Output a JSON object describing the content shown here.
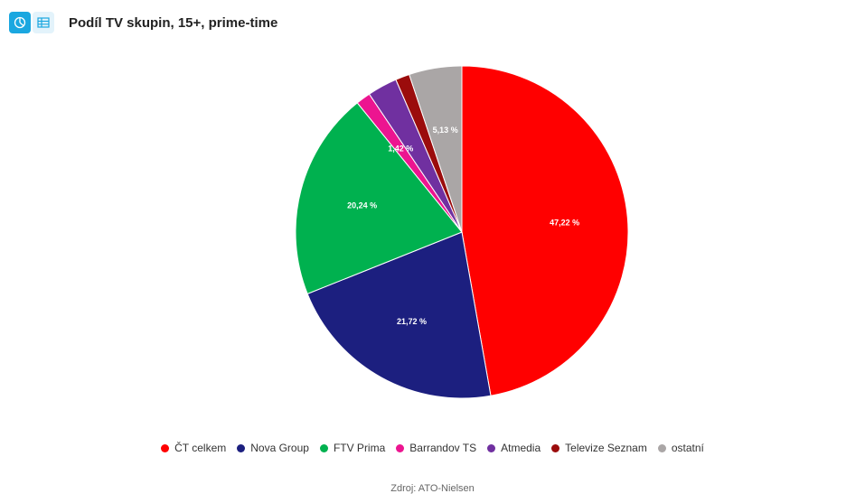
{
  "chart_data": {
    "type": "pie",
    "title": "Podíl TV skupin, 15+, prime-time",
    "categories": [
      "ČT celkem",
      "Nova Group",
      "FTV Prima",
      "Barrandov TS",
      "Atmedia",
      "Televize Seznam",
      "ostatní"
    ],
    "values": [
      47.22,
      21.72,
      20.24,
      1.42,
      2.9,
      1.37,
      5.13
    ],
    "value_labels": [
      "47,22 %",
      "21,72 %",
      "20,24 %",
      "1,42 %",
      null,
      null,
      "5,13 %"
    ],
    "colors": [
      "#ff0000",
      "#1c1f7f",
      "#00b14f",
      "#ec1590",
      "#7030a0",
      "#9b0c0c",
      "#aaa6a6"
    ],
    "source": "Zdroj: ATO-Nielsen"
  }
}
